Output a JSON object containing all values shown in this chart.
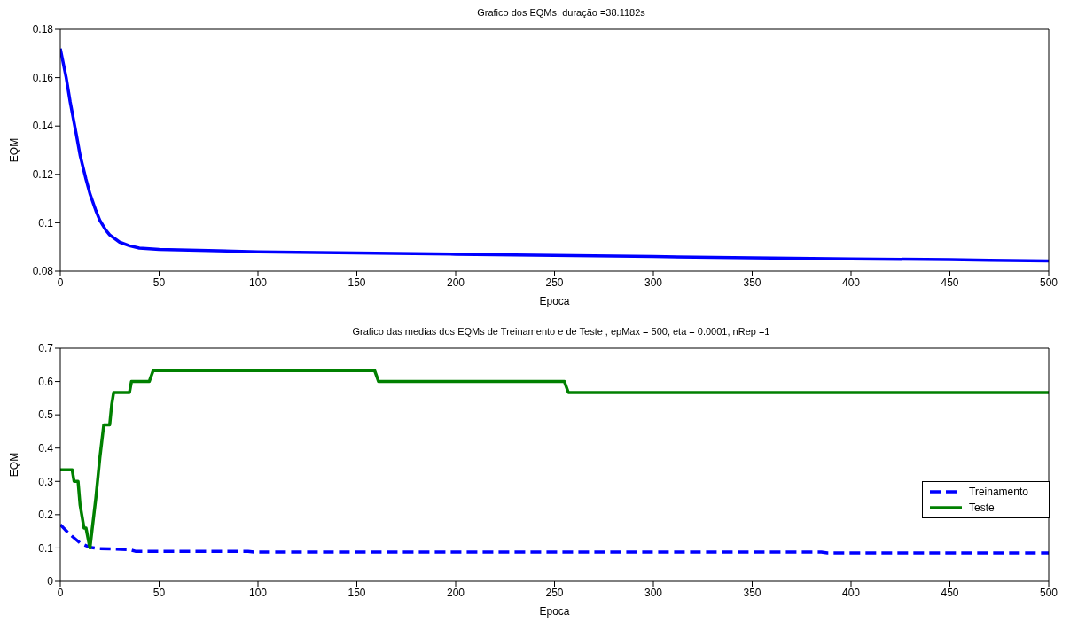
{
  "chart_data": [
    {
      "type": "line",
      "title": "Grafico dos EQMs, duração =38.1182s",
      "xlabel": "Epoca",
      "ylabel": "EQM",
      "xlim": [
        0,
        500
      ],
      "xticks": [
        0,
        50,
        100,
        150,
        200,
        250,
        300,
        350,
        400,
        450,
        500
      ],
      "ylim": [
        0.08,
        0.18
      ],
      "yticks": [
        0.08,
        0.1,
        0.12,
        0.14,
        0.16,
        0.18
      ],
      "marker": "none",
      "series": [
        {
          "color": "#0000ff",
          "line_style": "solid",
          "x": [
            0,
            3,
            5,
            8,
            10,
            13,
            15,
            18,
            20,
            23,
            25,
            30,
            35,
            40,
            50,
            75,
            100,
            150,
            200,
            250,
            300,
            350,
            400,
            450,
            470,
            500
          ],
          "values": [
            0.172,
            0.16,
            0.15,
            0.137,
            0.128,
            0.118,
            0.112,
            0.105,
            0.101,
            0.097,
            0.095,
            0.092,
            0.0905,
            0.0895,
            0.089,
            0.0885,
            0.088,
            0.0875,
            0.087,
            0.0865,
            0.086,
            0.0855,
            0.085,
            0.0848,
            0.0845,
            0.0842
          ]
        }
      ]
    },
    {
      "type": "line",
      "title": "Grafico das medias dos EQMs de Treinamento e de Teste , epMax = 500, eta = 0.0001, nRep =1",
      "xlabel": "Epoca",
      "ylabel": "EQM",
      "xlim": [
        0,
        500
      ],
      "xticks": [
        0,
        50,
        100,
        150,
        200,
        250,
        300,
        350,
        400,
        450,
        500
      ],
      "ylim": [
        0,
        0.7
      ],
      "yticks": [
        0,
        0.1,
        0.2,
        0.3,
        0.4,
        0.5,
        0.6,
        0.7
      ],
      "marker": "none",
      "legend": "right",
      "series": [
        {
          "name": "Treinamento",
          "color": "#0000ff",
          "line_style": "dashed",
          "x": [
            0,
            5,
            10,
            15,
            20,
            35,
            38,
            95,
            98,
            385,
            388,
            500
          ],
          "values": [
            0.17,
            0.14,
            0.115,
            0.102,
            0.098,
            0.095,
            0.09,
            0.09,
            0.088,
            0.088,
            0.085,
            0.085
          ]
        },
        {
          "name": "Teste",
          "color": "#008000",
          "line_style": "solid",
          "x": [
            0,
            6,
            7,
            9,
            10,
            12,
            13,
            15,
            17,
            18,
            20,
            21,
            22,
            25,
            26,
            27,
            35,
            36,
            45,
            47,
            159,
            161,
            255,
            257,
            500
          ],
          "values": [
            0.335,
            0.335,
            0.3,
            0.3,
            0.23,
            0.16,
            0.16,
            0.1,
            0.2,
            0.25,
            0.37,
            0.42,
            0.47,
            0.47,
            0.53,
            0.567,
            0.567,
            0.6,
            0.6,
            0.633,
            0.633,
            0.6,
            0.6,
            0.567,
            0.567
          ]
        }
      ]
    }
  ]
}
